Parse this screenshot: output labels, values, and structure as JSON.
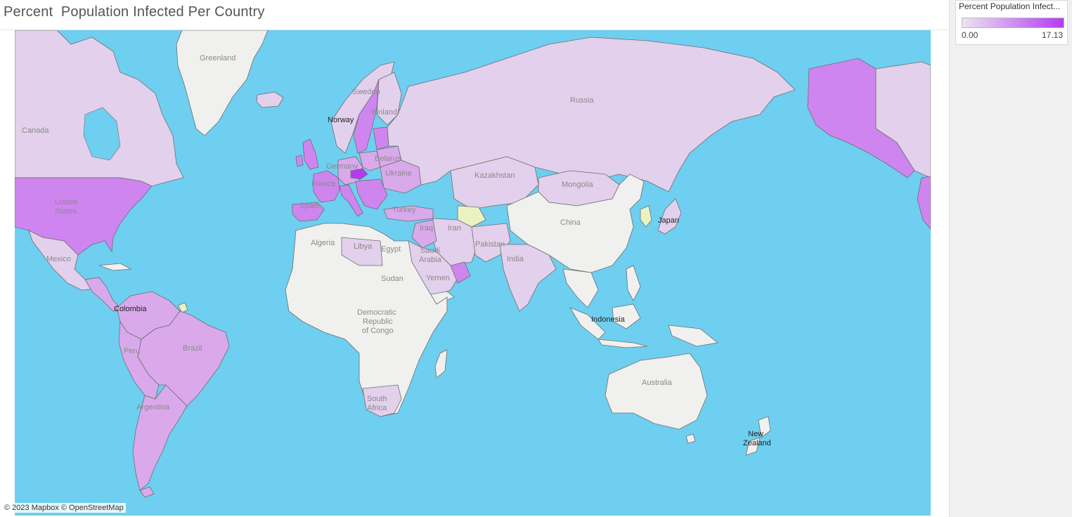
{
  "title": "Percent  Population Infected Per Country",
  "legend": {
    "title": "Percent Population Infect...",
    "min": "0.00",
    "max": "17.13",
    "color_min": "#ebe4f0",
    "color_max": "#b33cf2"
  },
  "attribution": "© 2023 Mapbox  © OpenStreetMap",
  "colors": {
    "water": "#6ecff0",
    "no_data": "#f0f0ef",
    "low": "#e2d0ec",
    "mid": "#d9a9ec",
    "high": "#cf85ef",
    "highest": "#b33cf2",
    "yellow": "#eaf2c3"
  },
  "country_labels": {
    "greenland": "Greenland",
    "canada": "Canada",
    "united_states": "United\nStates",
    "mexico": "Mexico",
    "colombia": "Colombia",
    "peru": "Peru",
    "brazil": "Brazil",
    "argentina": "Argentina",
    "russia": "Russia",
    "kazakhstan": "Kazakhstan",
    "mongolia": "Mongolia",
    "china": "China",
    "japan": "Japan",
    "india": "India",
    "iran": "Iran",
    "turkey": "Turkey",
    "ukraine": "Ukraine",
    "belarus": "Belarus",
    "germany": "Germany",
    "france": "France",
    "spain": "Spain",
    "sweden": "Sweden",
    "finland": "Finland",
    "norway": "Norway",
    "algeria": "Algeria",
    "libya": "Libya",
    "egypt": "Egypt",
    "sudan": "Sudan",
    "saudi_arabia": "Saudi\nArabia",
    "yemen": "Yemen",
    "pakistan": "Pakistan",
    "iraq": "Iraq",
    "drc": "Democratic\nRepublic\nof Congo",
    "south_africa": "South\nAfrica",
    "indonesia": "Indonesia",
    "australia": "Australia",
    "new_zealand": "New\nZealand"
  }
}
